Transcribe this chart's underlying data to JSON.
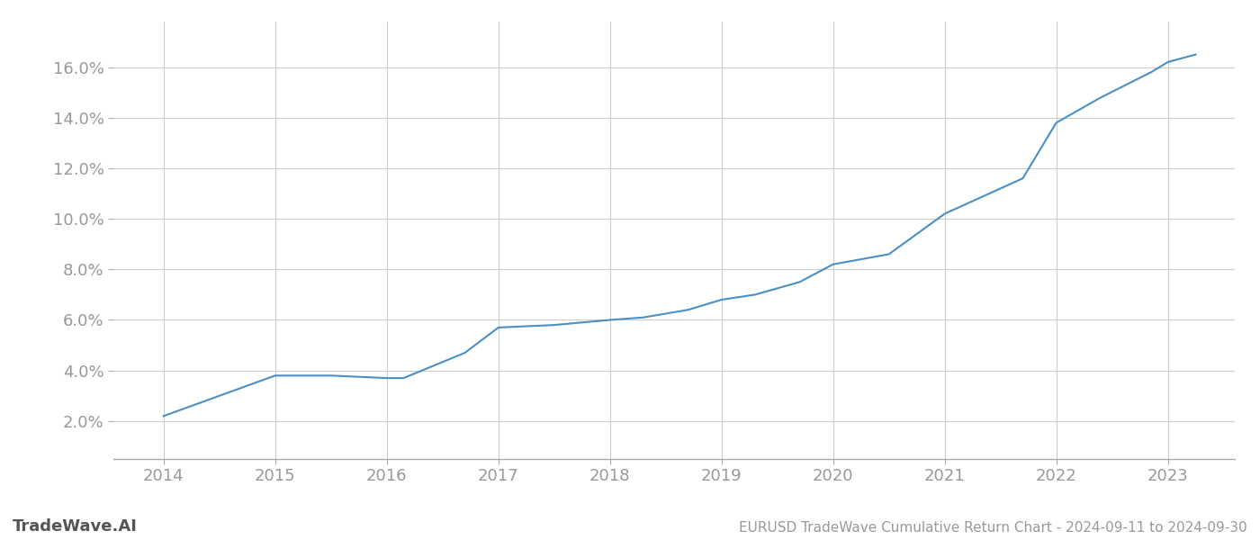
{
  "title": "EURUSD TradeWave Cumulative Return Chart - 2024-09-11 to 2024-09-30",
  "watermark": "TradeWave.AI",
  "line_color": "#4a90c4",
  "background_color": "#ffffff",
  "grid_color": "#cccccc",
  "x_values": [
    2014,
    2014.5,
    2015,
    2015.5,
    2016,
    2016.15,
    2016.7,
    2017,
    2017.5,
    2018,
    2018.3,
    2018.7,
    2019,
    2019.3,
    2019.7,
    2020,
    2020.5,
    2021,
    2021.15,
    2021.7,
    2022,
    2022.4,
    2022.85,
    2023,
    2023.25
  ],
  "y_values": [
    0.022,
    0.03,
    0.038,
    0.038,
    0.037,
    0.037,
    0.047,
    0.057,
    0.058,
    0.06,
    0.061,
    0.064,
    0.068,
    0.07,
    0.075,
    0.082,
    0.086,
    0.102,
    0.105,
    0.116,
    0.138,
    0.148,
    0.158,
    0.162,
    0.165
  ],
  "x_ticks": [
    2014,
    2015,
    2016,
    2017,
    2018,
    2019,
    2020,
    2021,
    2022,
    2023
  ],
  "y_ticks": [
    0.02,
    0.04,
    0.06,
    0.08,
    0.1,
    0.12,
    0.14,
    0.16
  ],
  "ylim": [
    0.005,
    0.178
  ],
  "xlim": [
    2013.55,
    2023.6
  ],
  "line_width": 1.5,
  "title_fontsize": 11,
  "tick_fontsize": 13,
  "watermark_fontsize": 13
}
